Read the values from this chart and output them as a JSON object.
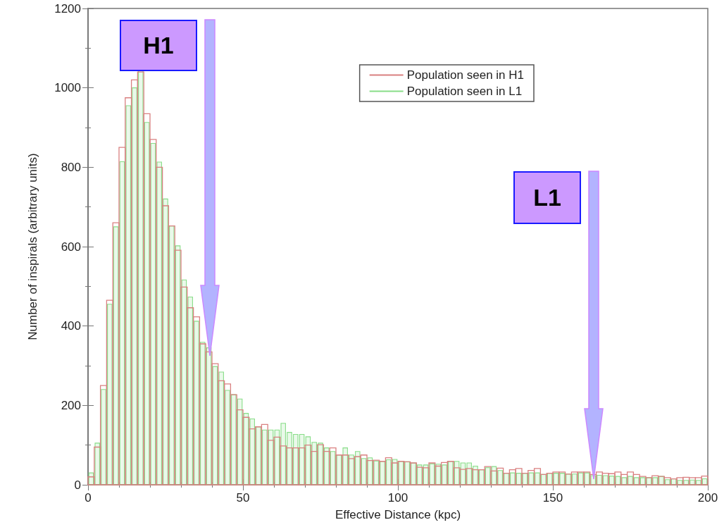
{
  "chart_data": {
    "type": "histogram",
    "xlabel": "Effective Distance (kpc)",
    "ylabel": "Number of inspirals (arbitrary units)",
    "bins": [
      0,
      2,
      4,
      6,
      8,
      10,
      12,
      14,
      16,
      18,
      20,
      22,
      24,
      26,
      28,
      30,
      32,
      34,
      36,
      38,
      40,
      42,
      44,
      46,
      48,
      50,
      52,
      54,
      56,
      58,
      60,
      62,
      64,
      66,
      68,
      70,
      72,
      74,
      76,
      78,
      80,
      82,
      84,
      86,
      88,
      90,
      92,
      94,
      96,
      98,
      100,
      102,
      104,
      106,
      108,
      110,
      112,
      114,
      116,
      118,
      120,
      122,
      124,
      126,
      128,
      130,
      132,
      134,
      136,
      138,
      140,
      142,
      144,
      146,
      148,
      150,
      152,
      154,
      156,
      158,
      160,
      162,
      164,
      166,
      168,
      170,
      172,
      174,
      176,
      178,
      180,
      182,
      184,
      186,
      188,
      190,
      192,
      194,
      196,
      198,
      200
    ],
    "series": [
      {
        "name": "Population seen in H1",
        "color": "#d98080",
        "values": [
          20,
          95,
          250,
          465,
          660,
          850,
          975,
          1020,
          1040,
          935,
          870,
          800,
          703,
          652,
          591,
          498,
          446,
          423,
          355,
          335,
          305,
          262,
          254,
          227,
          189,
          170,
          141,
          146,
          152,
          112,
          120,
          98,
          93,
          93,
          93,
          100,
          84,
          101,
          84,
          93,
          75,
          75,
          66,
          71,
          75,
          61,
          62,
          59,
          68,
          55,
          59,
          58,
          55,
          44,
          43,
          55,
          47,
          56,
          59,
          43,
          39,
          41,
          38,
          38,
          46,
          35,
          42,
          29,
          38,
          41,
          29,
          36,
          41,
          26,
          29,
          32,
          32,
          27,
          32,
          32,
          32,
          26,
          32,
          29,
          28,
          32,
          26,
          32,
          26,
          21,
          18,
          23,
          21,
          18,
          15,
          18,
          19,
          18,
          18,
          22
        ]
      },
      {
        "name": "Population seen in L1",
        "color": "#88dd88",
        "values": [
          30,
          105,
          240,
          455,
          650,
          814,
          955,
          1000,
          1050,
          913,
          860,
          813,
          720,
          652,
          602,
          516,
          473,
          412,
          359,
          345,
          298,
          284,
          238,
          227,
          216,
          180,
          166,
          146,
          138,
          138,
          138,
          155,
          132,
          127,
          127,
          121,
          107,
          105,
          93,
          84,
          75,
          93,
          75,
          84,
          66,
          68,
          60,
          59,
          63,
          64,
          59,
          58,
          55,
          50,
          50,
          53,
          52,
          50,
          59,
          59,
          55,
          55,
          47,
          38,
          43,
          46,
          36,
          29,
          30,
          29,
          29,
          30,
          30,
          26,
          29,
          29,
          29,
          27,
          27,
          30,
          30,
          23,
          24,
          23,
          22,
          21,
          18,
          21,
          18,
          18,
          18,
          18,
          21,
          13,
          15,
          11,
          11,
          12,
          11,
          15
        ]
      }
    ],
    "xlim": [
      0,
      200
    ],
    "xticks": [
      0,
      50,
      100,
      150,
      200
    ],
    "ylim": [
      0,
      1200
    ],
    "yticks": [
      0,
      200,
      400,
      600,
      800,
      1000,
      1200
    ],
    "grid": false,
    "legend": "top right",
    "annotations": [
      "H1",
      "L1"
    ]
  }
}
